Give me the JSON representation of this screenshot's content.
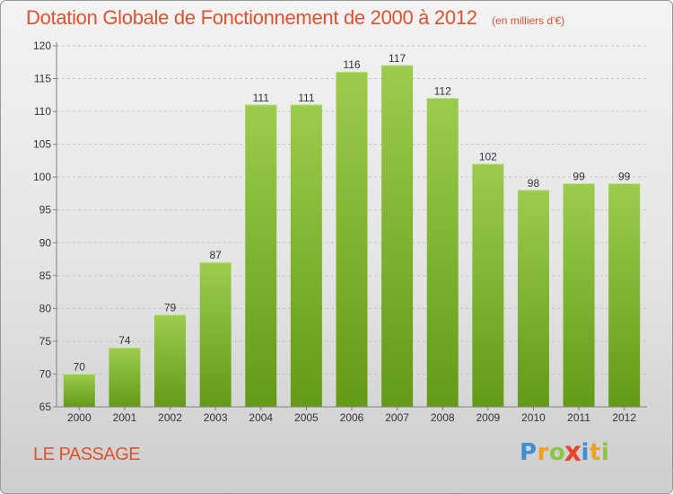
{
  "chart_data": {
    "type": "bar",
    "title": "Dotation Globale de Fonctionnement de 2000 à 2012",
    "subtitle": "(en milliers d'€)",
    "categories": [
      "2000",
      "2001",
      "2002",
      "2003",
      "2004",
      "2005",
      "2006",
      "2007",
      "2008",
      "2009",
      "2010",
      "2011",
      "2012"
    ],
    "values": [
      70,
      74,
      79,
      87,
      111,
      111,
      116,
      117,
      112,
      102,
      98,
      99,
      99
    ],
    "ylim": [
      65,
      120
    ],
    "yticks": [
      65,
      70,
      75,
      80,
      85,
      90,
      95,
      100,
      105,
      110,
      115,
      120
    ],
    "grid": true,
    "data_labels": true,
    "colors": {
      "bar_top": "#9ccc4e",
      "bar_bottom": "#639a17",
      "title": "#e0522e"
    }
  },
  "footer": {
    "city": "LE PASSAGE",
    "brand_letters": [
      {
        "ch": "P",
        "color": "#3f8fd8"
      },
      {
        "ch": "r",
        "color": "#f0a020"
      },
      {
        "ch": "o",
        "color": "#8cc63f"
      },
      {
        "ch": "x",
        "color": "#e8462a"
      },
      {
        "ch": "i",
        "color": "#3f8fd8"
      },
      {
        "ch": "t",
        "color": "#f0a020"
      },
      {
        "ch": "i",
        "color": "#8cc63f"
      }
    ]
  }
}
